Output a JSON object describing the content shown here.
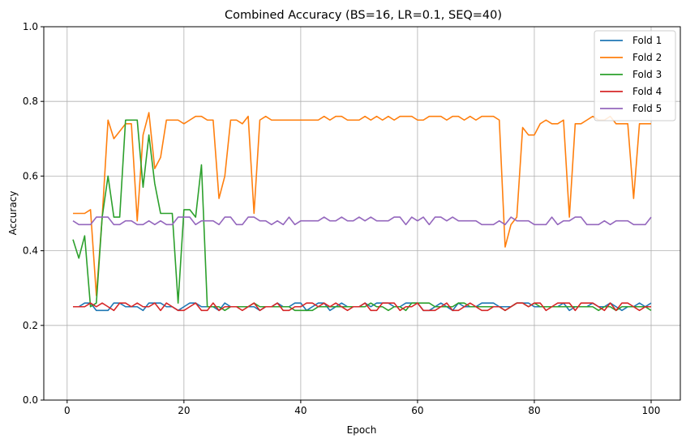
{
  "chart_data": {
    "type": "line",
    "title": "Combined Accuracy (BS=16, LR=0.1, SEQ=40)",
    "xlabel": "Epoch",
    "ylabel": "Accuracy",
    "xlim": [
      -4,
      105
    ],
    "ylim": [
      0,
      1
    ],
    "xticks": [
      0,
      20,
      40,
      60,
      80,
      100
    ],
    "yticks": [
      0.0,
      0.2,
      0.4,
      0.6,
      0.8,
      1.0
    ],
    "xtick_labels": [
      "0",
      "20",
      "40",
      "60",
      "80",
      "100"
    ],
    "ytick_labels": [
      "0.0",
      "0.2",
      "0.4",
      "0.6",
      "0.8",
      "1.0"
    ],
    "grid": true,
    "legend_position": "top-right",
    "x": [
      1,
      2,
      3,
      4,
      5,
      6,
      7,
      8,
      9,
      10,
      11,
      12,
      13,
      14,
      15,
      16,
      17,
      18,
      19,
      20,
      21,
      22,
      23,
      24,
      25,
      26,
      27,
      28,
      29,
      30,
      31,
      32,
      33,
      34,
      35,
      36,
      37,
      38,
      39,
      40,
      41,
      42,
      43,
      44,
      45,
      46,
      47,
      48,
      49,
      50,
      51,
      52,
      53,
      54,
      55,
      56,
      57,
      58,
      59,
      60,
      61,
      62,
      63,
      64,
      65,
      66,
      67,
      68,
      69,
      70,
      71,
      72,
      73,
      74,
      75,
      76,
      77,
      78,
      79,
      80,
      81,
      82,
      83,
      84,
      85,
      86,
      87,
      88,
      89,
      90,
      91,
      92,
      93,
      94,
      95,
      96,
      97,
      98,
      99,
      100
    ],
    "series": [
      {
        "name": "Fold 1",
        "color": "#1f77b4",
        "values": [
          0.25,
          0.25,
          0.26,
          0.26,
          0.24,
          0.24,
          0.24,
          0.26,
          0.26,
          0.25,
          0.25,
          0.25,
          0.24,
          0.26,
          0.26,
          0.26,
          0.25,
          0.25,
          0.24,
          0.25,
          0.26,
          0.26,
          0.25,
          0.25,
          0.25,
          0.24,
          0.26,
          0.25,
          0.25,
          0.25,
          0.25,
          0.25,
          0.24,
          0.25,
          0.25,
          0.26,
          0.25,
          0.25,
          0.26,
          0.26,
          0.24,
          0.25,
          0.26,
          0.26,
          0.24,
          0.25,
          0.26,
          0.25,
          0.25,
          0.25,
          0.26,
          0.25,
          0.26,
          0.26,
          0.26,
          0.25,
          0.25,
          0.26,
          0.26,
          0.26,
          0.24,
          0.24,
          0.25,
          0.26,
          0.25,
          0.24,
          0.26,
          0.25,
          0.25,
          0.25,
          0.26,
          0.26,
          0.26,
          0.25,
          0.25,
          0.25,
          0.26,
          0.26,
          0.26,
          0.25,
          0.25,
          0.25,
          0.25,
          0.25,
          0.26,
          0.24,
          0.25,
          0.25,
          0.25,
          0.26,
          0.25,
          0.25,
          0.26,
          0.25,
          0.24,
          0.25,
          0.25,
          0.26,
          0.25,
          0.26
        ]
      },
      {
        "name": "Fold 2",
        "color": "#ff7f0e",
        "values": [
          0.5,
          0.5,
          0.5,
          0.51,
          0.28,
          0.49,
          0.75,
          0.7,
          0.72,
          0.74,
          0.74,
          0.48,
          0.71,
          0.77,
          0.62,
          0.65,
          0.75,
          0.75,
          0.75,
          0.74,
          0.75,
          0.76,
          0.76,
          0.75,
          0.75,
          0.54,
          0.6,
          0.75,
          0.75,
          0.74,
          0.76,
          0.5,
          0.75,
          0.76,
          0.75,
          0.75,
          0.75,
          0.75,
          0.75,
          0.75,
          0.75,
          0.75,
          0.75,
          0.76,
          0.75,
          0.76,
          0.76,
          0.75,
          0.75,
          0.75,
          0.76,
          0.75,
          0.76,
          0.75,
          0.76,
          0.75,
          0.76,
          0.76,
          0.76,
          0.75,
          0.75,
          0.76,
          0.76,
          0.76,
          0.75,
          0.76,
          0.76,
          0.75,
          0.76,
          0.75,
          0.76,
          0.76,
          0.76,
          0.75,
          0.41,
          0.47,
          0.49,
          0.73,
          0.71,
          0.71,
          0.74,
          0.75,
          0.74,
          0.74,
          0.75,
          0.49,
          0.74,
          0.74,
          0.75,
          0.76,
          0.75,
          0.75,
          0.76,
          0.74,
          0.74,
          0.74,
          0.54,
          0.74,
          0.74,
          0.74
        ]
      },
      {
        "name": "Fold 3",
        "color": "#2ca02c",
        "values": [
          0.43,
          0.38,
          0.44,
          0.25,
          0.26,
          0.49,
          0.6,
          0.49,
          0.49,
          0.75,
          0.75,
          0.75,
          0.57,
          0.71,
          0.58,
          0.5,
          0.5,
          0.5,
          0.26,
          0.51,
          0.51,
          0.49,
          0.63,
          0.25,
          0.25,
          0.25,
          0.24,
          0.25,
          0.25,
          0.25,
          0.25,
          0.26,
          0.25,
          0.25,
          0.25,
          0.25,
          0.25,
          0.25,
          0.24,
          0.24,
          0.24,
          0.24,
          0.25,
          0.25,
          0.25,
          0.25,
          0.25,
          0.25,
          0.25,
          0.25,
          0.25,
          0.26,
          0.25,
          0.25,
          0.24,
          0.25,
          0.25,
          0.24,
          0.26,
          0.26,
          0.26,
          0.26,
          0.25,
          0.25,
          0.25,
          0.25,
          0.26,
          0.26,
          0.25,
          0.25,
          0.25,
          0.25,
          0.25,
          0.25,
          0.24,
          0.25,
          0.26,
          0.26,
          0.25,
          0.26,
          0.25,
          0.25,
          0.25,
          0.25,
          0.25,
          0.25,
          0.25,
          0.25,
          0.25,
          0.25,
          0.24,
          0.25,
          0.25,
          0.24,
          0.25,
          0.25,
          0.25,
          0.25,
          0.25,
          0.24
        ]
      },
      {
        "name": "Fold 4",
        "color": "#d62728",
        "values": [
          0.25,
          0.25,
          0.25,
          0.26,
          0.25,
          0.26,
          0.25,
          0.24,
          0.26,
          0.26,
          0.25,
          0.26,
          0.25,
          0.25,
          0.26,
          0.24,
          0.26,
          0.25,
          0.24,
          0.24,
          0.25,
          0.26,
          0.24,
          0.24,
          0.26,
          0.24,
          0.25,
          0.25,
          0.25,
          0.24,
          0.25,
          0.26,
          0.24,
          0.25,
          0.25,
          0.26,
          0.24,
          0.24,
          0.25,
          0.25,
          0.26,
          0.26,
          0.25,
          0.26,
          0.25,
          0.26,
          0.25,
          0.24,
          0.25,
          0.25,
          0.26,
          0.24,
          0.24,
          0.26,
          0.26,
          0.26,
          0.24,
          0.25,
          0.25,
          0.26,
          0.24,
          0.24,
          0.24,
          0.25,
          0.26,
          0.24,
          0.24,
          0.25,
          0.26,
          0.25,
          0.24,
          0.24,
          0.25,
          0.25,
          0.24,
          0.25,
          0.26,
          0.26,
          0.25,
          0.26,
          0.26,
          0.24,
          0.25,
          0.26,
          0.26,
          0.26,
          0.24,
          0.26,
          0.26,
          0.26,
          0.25,
          0.24,
          0.26,
          0.24,
          0.26,
          0.26,
          0.25,
          0.24,
          0.25,
          0.25
        ]
      },
      {
        "name": "Fold 5",
        "color": "#9467bd",
        "values": [
          0.48,
          0.47,
          0.47,
          0.47,
          0.49,
          0.49,
          0.49,
          0.47,
          0.47,
          0.48,
          0.48,
          0.47,
          0.47,
          0.48,
          0.47,
          0.48,
          0.47,
          0.47,
          0.49,
          0.49,
          0.49,
          0.47,
          0.48,
          0.48,
          0.48,
          0.47,
          0.49,
          0.49,
          0.47,
          0.47,
          0.49,
          0.49,
          0.48,
          0.48,
          0.47,
          0.48,
          0.47,
          0.49,
          0.47,
          0.48,
          0.48,
          0.48,
          0.48,
          0.49,
          0.48,
          0.48,
          0.49,
          0.48,
          0.48,
          0.49,
          0.48,
          0.49,
          0.48,
          0.48,
          0.48,
          0.49,
          0.49,
          0.47,
          0.49,
          0.48,
          0.49,
          0.47,
          0.49,
          0.49,
          0.48,
          0.49,
          0.48,
          0.48,
          0.48,
          0.48,
          0.47,
          0.47,
          0.47,
          0.48,
          0.47,
          0.49,
          0.48,
          0.48,
          0.48,
          0.47,
          0.47,
          0.47,
          0.49,
          0.47,
          0.48,
          0.48,
          0.49,
          0.49,
          0.47,
          0.47,
          0.47,
          0.48,
          0.47,
          0.48,
          0.48,
          0.48,
          0.47,
          0.47,
          0.47,
          0.49
        ]
      }
    ]
  }
}
